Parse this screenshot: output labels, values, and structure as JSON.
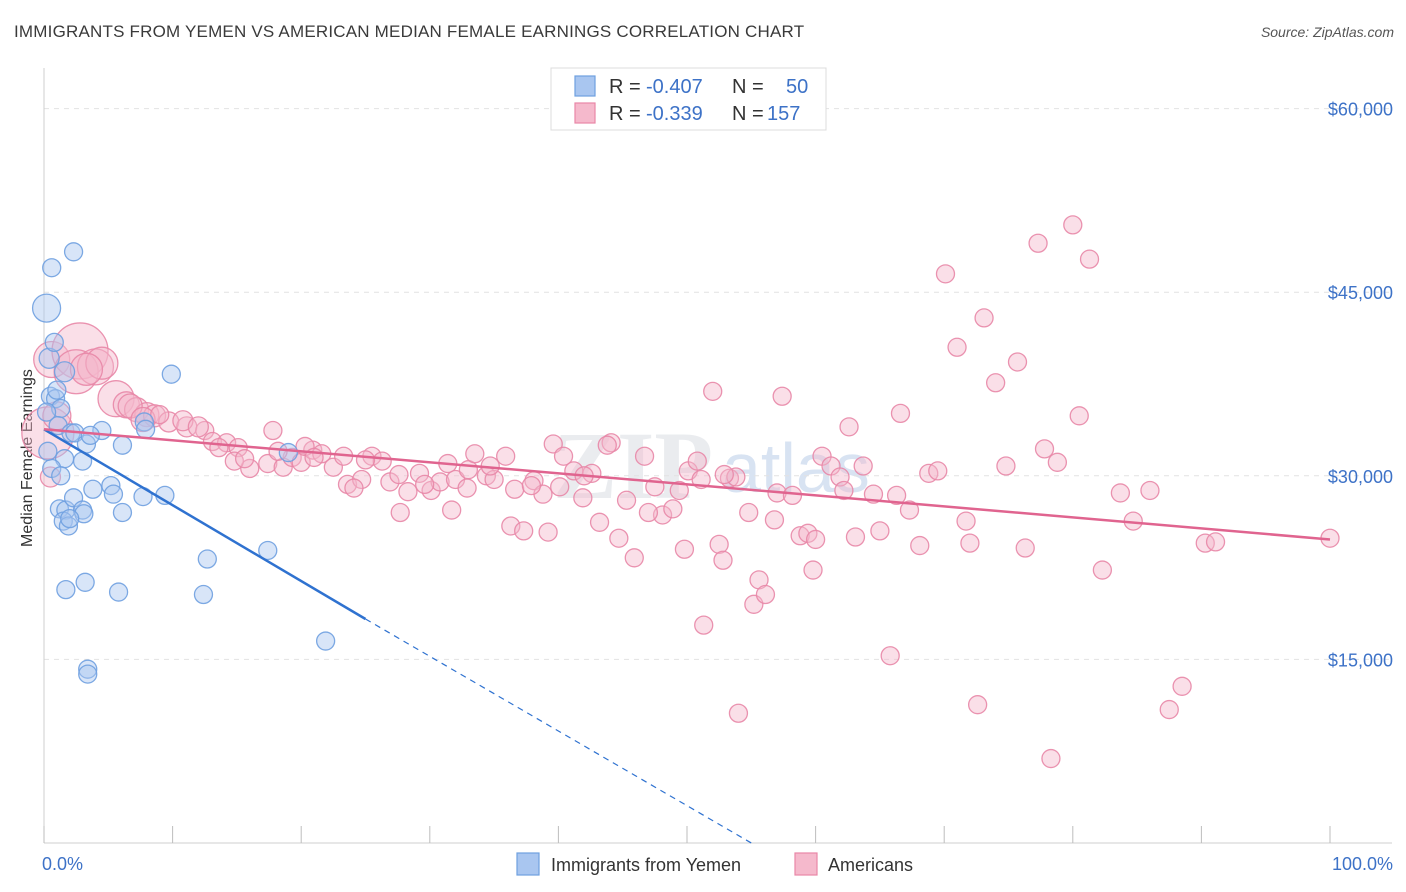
{
  "title": "IMMIGRANTS FROM YEMEN VS AMERICAN MEDIAN FEMALE EARNINGS CORRELATION CHART",
  "source": "Source: ZipAtlas.com",
  "colors": {
    "blue": "#6fa0e0",
    "blue_fill": "#a9c6f0",
    "blue_line": "#2f72d0",
    "pink": "#e887a7",
    "pink_fill": "#f5b9cc",
    "pink_line": "#e0648f",
    "axis_label": "#3d72c7",
    "grid": "#e2e2e2"
  },
  "legend": {
    "r_label": "R =",
    "n_label": "N =",
    "rows": [
      {
        "r": "-0.407",
        "n": "50",
        "color": "blue"
      },
      {
        "r": "-0.339",
        "n": "157",
        "color": "pink"
      }
    ]
  },
  "bottom_legend": [
    "Immigrants from Yemen",
    "Americans"
  ],
  "watermark": {
    "zip": "ZIP",
    "atlas": "atlas"
  },
  "chart_data": {
    "type": "scatter",
    "title": "IMMIGRANTS FROM YEMEN VS AMERICAN MEDIAN FEMALE EARNINGS CORRELATION CHART",
    "xlabel": "",
    "ylabel": "Median Female Earnings",
    "x_tick_labels": [
      "0.0%",
      "100.0%"
    ],
    "y_tick_labels": [
      "$15,000",
      "$30,000",
      "$45,000",
      "$60,000"
    ],
    "y_ticks": [
      15000,
      30000,
      45000,
      60000
    ],
    "xlim": [
      0,
      100
    ],
    "ylim": [
      0,
      62500
    ],
    "grid": true,
    "legend_position": "top-center",
    "series": [
      {
        "name": "Immigrants from Yemen",
        "color": "blue",
        "r": -0.407,
        "n": 50,
        "trend": {
          "x": [
            0,
            25
          ],
          "y": [
            33800,
            18300
          ]
        },
        "trend_extension": {
          "x": [
            25,
            55
          ],
          "y": [
            18300,
            0
          ]
        },
        "points": [
          [
            0.2,
            43700,
            14
          ],
          [
            0.6,
            47000,
            9
          ],
          [
            2.3,
            48300,
            9
          ],
          [
            0.4,
            39600,
            10
          ],
          [
            0.8,
            40900,
            9
          ],
          [
            1.6,
            38500,
            10
          ],
          [
            0.5,
            36500,
            9
          ],
          [
            0.9,
            36300,
            9
          ],
          [
            1.3,
            35500,
            9
          ],
          [
            0.2,
            35200,
            9
          ],
          [
            1.1,
            34100,
            9
          ],
          [
            2.1,
            33500,
            9
          ],
          [
            2.4,
            33500,
            9
          ],
          [
            3.3,
            32600,
            9
          ],
          [
            3.0,
            31200,
            9
          ],
          [
            1.6,
            31400,
            9
          ],
          [
            4.5,
            33700,
            9
          ],
          [
            6.1,
            32500,
            9
          ],
          [
            0.6,
            30600,
            9
          ],
          [
            1.3,
            30000,
            9
          ],
          [
            7.8,
            34400,
            9
          ],
          [
            7.9,
            33800,
            9
          ],
          [
            9.9,
            38300,
            9
          ],
          [
            19.0,
            31900,
            9
          ],
          [
            3.8,
            28900,
            9
          ],
          [
            5.2,
            29200,
            9
          ],
          [
            5.4,
            28500,
            9
          ],
          [
            7.7,
            28300,
            9
          ],
          [
            9.4,
            28400,
            9
          ],
          [
            1.2,
            27300,
            9
          ],
          [
            1.7,
            27200,
            9
          ],
          [
            2.3,
            28200,
            9
          ],
          [
            3.0,
            27200,
            9
          ],
          [
            6.1,
            27000,
            9
          ],
          [
            3.1,
            26900,
            9
          ],
          [
            1.5,
            26300,
            9
          ],
          [
            1.9,
            25900,
            9
          ],
          [
            12.7,
            23200,
            9
          ],
          [
            17.4,
            23900,
            9
          ],
          [
            1.7,
            20700,
            9
          ],
          [
            3.2,
            21300,
            9
          ],
          [
            5.8,
            20500,
            9
          ],
          [
            12.4,
            20300,
            9
          ],
          [
            21.9,
            16500,
            9
          ],
          [
            3.4,
            14200,
            9
          ],
          [
            3.4,
            13800,
            9
          ],
          [
            0.3,
            32000,
            9
          ],
          [
            1.0,
            37000,
            9
          ],
          [
            2.0,
            26500,
            9
          ],
          [
            3.6,
            33300,
            9
          ]
        ]
      },
      {
        "name": "Americans",
        "color": "pink",
        "r": -0.339,
        "n": 157,
        "trend": {
          "x": [
            0,
            100
          ],
          "y": [
            33800,
            24800
          ]
        },
        "points": [
          [
            0.3,
            33500,
            26
          ],
          [
            0.6,
            39500,
            18
          ],
          [
            2.8,
            40200,
            28
          ],
          [
            2.5,
            38500,
            22
          ],
          [
            4.0,
            38900,
            18
          ],
          [
            4.5,
            39200,
            16
          ],
          [
            5.6,
            36300,
            18
          ],
          [
            6.4,
            35800,
            13
          ],
          [
            7.2,
            35400,
            12
          ],
          [
            8.0,
            35000,
            12
          ],
          [
            8.6,
            34900,
            11
          ],
          [
            9.7,
            34400,
            10
          ],
          [
            11.1,
            34000,
            10
          ],
          [
            12.5,
            33700,
            9
          ],
          [
            13.1,
            32800,
            9
          ],
          [
            14.2,
            32700,
            9
          ],
          [
            15.1,
            32300,
            9
          ],
          [
            16.0,
            30600,
            9
          ],
          [
            17.4,
            31000,
            9
          ],
          [
            17.8,
            33700,
            9
          ],
          [
            18.6,
            30700,
            9
          ],
          [
            19.3,
            31500,
            9
          ],
          [
            20.0,
            31100,
            9
          ],
          [
            20.9,
            32100,
            9
          ],
          [
            21.6,
            31800,
            9
          ],
          [
            22.5,
            30700,
            9
          ],
          [
            23.3,
            31600,
            9
          ],
          [
            23.6,
            29300,
            9
          ],
          [
            24.7,
            29700,
            9
          ],
          [
            25.5,
            31600,
            9
          ],
          [
            26.3,
            31200,
            9
          ],
          [
            26.9,
            29500,
            9
          ],
          [
            27.6,
            30100,
            9
          ],
          [
            28.3,
            28700,
            9
          ],
          [
            29.2,
            30200,
            9
          ],
          [
            30.1,
            28800,
            9
          ],
          [
            30.8,
            29500,
            9
          ],
          [
            31.4,
            31000,
            9
          ],
          [
            32.0,
            29700,
            9
          ],
          [
            33.0,
            30500,
            9
          ],
          [
            33.5,
            31800,
            9
          ],
          [
            34.4,
            30000,
            9
          ],
          [
            35.0,
            29700,
            9
          ],
          [
            35.9,
            31600,
            9
          ],
          [
            36.3,
            25900,
            9
          ],
          [
            37.3,
            25500,
            9
          ],
          [
            38.1,
            29600,
            9
          ],
          [
            38.8,
            28500,
            9
          ],
          [
            39.2,
            25400,
            9
          ],
          [
            39.6,
            32600,
            9
          ],
          [
            40.4,
            31600,
            9
          ],
          [
            41.2,
            30400,
            9
          ],
          [
            41.9,
            28200,
            9
          ],
          [
            42.6,
            30200,
            9
          ],
          [
            43.2,
            26200,
            9
          ],
          [
            44.1,
            32700,
            9
          ],
          [
            44.7,
            24900,
            9
          ],
          [
            45.3,
            28000,
            9
          ],
          [
            45.9,
            23300,
            9
          ],
          [
            46.7,
            31600,
            9
          ],
          [
            47.5,
            29100,
            9
          ],
          [
            48.1,
            26800,
            9
          ],
          [
            48.9,
            27300,
            9
          ],
          [
            49.4,
            28800,
            9
          ],
          [
            50.1,
            30400,
            9
          ],
          [
            50.8,
            31200,
            9
          ],
          [
            51.1,
            29700,
            9
          ],
          [
            51.3,
            17800,
            9
          ],
          [
            52.0,
            36900,
            9
          ],
          [
            52.5,
            24400,
            9
          ],
          [
            52.8,
            23100,
            9
          ],
          [
            53.3,
            29800,
            9
          ],
          [
            53.8,
            29900,
            9
          ],
          [
            54.0,
            10600,
            9
          ],
          [
            54.8,
            27000,
            9
          ],
          [
            55.6,
            21500,
            9
          ],
          [
            55.2,
            19500,
            9
          ],
          [
            56.1,
            20300,
            9
          ],
          [
            57.0,
            28600,
            9
          ],
          [
            57.4,
            36500,
            9
          ],
          [
            58.2,
            28400,
            9
          ],
          [
            58.8,
            25100,
            9
          ],
          [
            59.4,
            25300,
            9
          ],
          [
            59.8,
            22300,
            9
          ],
          [
            60.5,
            31600,
            9
          ],
          [
            61.2,
            30800,
            9
          ],
          [
            61.9,
            29900,
            9
          ],
          [
            62.6,
            34000,
            9
          ],
          [
            63.1,
            25000,
            9
          ],
          [
            63.7,
            30800,
            9
          ],
          [
            64.5,
            28500,
            9
          ],
          [
            65.0,
            25500,
            9
          ],
          [
            65.8,
            15300,
            9
          ],
          [
            66.6,
            35100,
            9
          ],
          [
            67.3,
            27200,
            9
          ],
          [
            68.1,
            24300,
            9
          ],
          [
            68.8,
            30200,
            9
          ],
          [
            70.1,
            46500,
            9
          ],
          [
            71.0,
            40500,
            9
          ],
          [
            71.7,
            26300,
            9
          ],
          [
            72.6,
            11300,
            9
          ],
          [
            73.1,
            42900,
            9
          ],
          [
            74.0,
            37600,
            9
          ],
          [
            74.8,
            30800,
            9
          ],
          [
            75.7,
            39300,
            9
          ],
          [
            76.3,
            24100,
            9
          ],
          [
            77.3,
            49000,
            9
          ],
          [
            77.8,
            32200,
            9
          ],
          [
            78.3,
            6900,
            9
          ],
          [
            78.8,
            31100,
            9
          ],
          [
            80.0,
            50500,
            9
          ],
          [
            80.5,
            34900,
            9
          ],
          [
            81.3,
            47700,
            9
          ],
          [
            82.3,
            22300,
            9
          ],
          [
            83.7,
            28600,
            9
          ],
          [
            84.7,
            26300,
            9
          ],
          [
            86.0,
            28800,
            9
          ],
          [
            87.5,
            10900,
            9
          ],
          [
            88.5,
            12800,
            9
          ],
          [
            90.3,
            24500,
            9
          ],
          [
            91.1,
            24600,
            9
          ],
          [
            100.0,
            24900,
            9
          ],
          [
            1.0,
            34900,
            14
          ],
          [
            3.3,
            38700,
            16
          ],
          [
            6.7,
            35700,
            12
          ],
          [
            7.7,
            34600,
            12
          ],
          [
            10.8,
            34500,
            10
          ],
          [
            12.0,
            34000,
            10
          ],
          [
            13.6,
            32300,
            9
          ],
          [
            14.8,
            31200,
            9
          ],
          [
            18.2,
            32000,
            9
          ],
          [
            20.3,
            32400,
            9
          ],
          [
            24.1,
            29000,
            9
          ],
          [
            29.6,
            29300,
            9
          ],
          [
            31.7,
            27200,
            9
          ],
          [
            34.7,
            30800,
            9
          ],
          [
            36.6,
            28900,
            9
          ],
          [
            40.1,
            29100,
            9
          ],
          [
            42.0,
            30000,
            9
          ],
          [
            43.8,
            32500,
            9
          ],
          [
            47.0,
            27000,
            9
          ],
          [
            49.8,
            24000,
            9
          ],
          [
            52.9,
            30100,
            9
          ],
          [
            56.8,
            26400,
            9
          ],
          [
            60.0,
            24800,
            9
          ],
          [
            62.2,
            28800,
            9
          ],
          [
            66.3,
            28400,
            9
          ],
          [
            69.5,
            30400,
            9
          ],
          [
            72.0,
            24500,
            9
          ],
          [
            0.5,
            29900,
            10
          ],
          [
            25.0,
            31300,
            9
          ],
          [
            27.7,
            27000,
            9
          ],
          [
            9.0,
            35000,
            9
          ],
          [
            15.6,
            31400,
            9
          ],
          [
            21.0,
            31500,
            9
          ],
          [
            32.9,
            29000,
            9
          ],
          [
            37.9,
            29200,
            9
          ]
        ]
      }
    ]
  }
}
